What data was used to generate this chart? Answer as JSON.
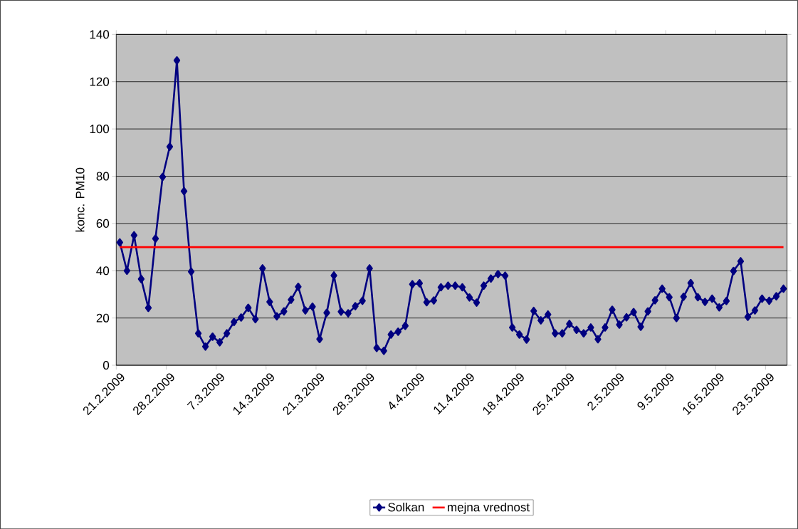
{
  "chart_data": {
    "type": "line",
    "ylabel": "konc. PM10",
    "categories": [
      "21.2.2009",
      null,
      null,
      null,
      null,
      null,
      null,
      "28.2.2009",
      null,
      null,
      null,
      null,
      null,
      null,
      "7.3.2009",
      null,
      null,
      null,
      null,
      null,
      null,
      "14.3.2009",
      null,
      null,
      null,
      null,
      null,
      null,
      "21.3.2009",
      null,
      null,
      null,
      null,
      null,
      null,
      "28.3.2009",
      null,
      null,
      null,
      null,
      null,
      null,
      "4.4.2009",
      null,
      null,
      null,
      null,
      null,
      null,
      "11.4.2009",
      null,
      null,
      null,
      null,
      null,
      null,
      "18.4.2009",
      null,
      null,
      null,
      null,
      null,
      null,
      "25.4.2009",
      null,
      null,
      null,
      null,
      null,
      null,
      "2.5.2009",
      null,
      null,
      null,
      null,
      null,
      null,
      "9.5.2009",
      null,
      null,
      null,
      null,
      null,
      null,
      "16.5.2009",
      null,
      null,
      null,
      null,
      null,
      null,
      "23.5.2009",
      null,
      null
    ],
    "series": [
      {
        "name": "Solkan",
        "color": "#000080",
        "marker": "diamond",
        "values": [
          52,
          40,
          55,
          36.5,
          24.3,
          53.6,
          79.7,
          92.5,
          129,
          73.7,
          39.6,
          13.5,
          7.9,
          12.1,
          9.7,
          13.5,
          18.3,
          20.2,
          24.3,
          19.5,
          41,
          26.8,
          20.7,
          22.8,
          27.7,
          33.2,
          23.2,
          24.8,
          11.1,
          22.2,
          38,
          22.7,
          22,
          25,
          27.3,
          41,
          7.3,
          6.1,
          13,
          14.2,
          16.7,
          34.3,
          34.7,
          26.7,
          27.4,
          33,
          33.7,
          33.7,
          33,
          28.7,
          26.5,
          33.7,
          36.7,
          38.6,
          37.9,
          16,
          13,
          10.9,
          23,
          19,
          21.5,
          13.5,
          13.5,
          17.5,
          15,
          13.5,
          16,
          11,
          16,
          23.5,
          17.2,
          20.3,
          22.5,
          16.3,
          22.8,
          27.5,
          32.4,
          28.8,
          20,
          29,
          34.8,
          28.8,
          26.8,
          28.2,
          24.5,
          27.2,
          39.9,
          44,
          20.5,
          23.2,
          28.2,
          27.3,
          29.2,
          32.4
        ]
      },
      {
        "name": "mejna vrednost",
        "color": "#ff0000",
        "marker": "none",
        "values": [
          50,
          50,
          50,
          50,
          50,
          50,
          50,
          50,
          50,
          50,
          50,
          50,
          50,
          50,
          50,
          50,
          50,
          50,
          50,
          50,
          50,
          50,
          50,
          50,
          50,
          50,
          50,
          50,
          50,
          50,
          50,
          50,
          50,
          50,
          50,
          50,
          50,
          50,
          50,
          50,
          50,
          50,
          50,
          50,
          50,
          50,
          50,
          50,
          50,
          50,
          50,
          50,
          50,
          50,
          50,
          50,
          50,
          50,
          50,
          50,
          50,
          50,
          50,
          50,
          50,
          50,
          50,
          50,
          50,
          50,
          50,
          50,
          50,
          50,
          50,
          50,
          50,
          50,
          50,
          50,
          50,
          50,
          50,
          50,
          50,
          50,
          50,
          50,
          50,
          50,
          50,
          50,
          50,
          50
        ]
      }
    ],
    "ylim": [
      0,
      140
    ],
    "yticks": [
      0,
      20,
      40,
      60,
      80,
      100,
      120,
      140
    ],
    "grid": "y",
    "legend": "bottom"
  }
}
